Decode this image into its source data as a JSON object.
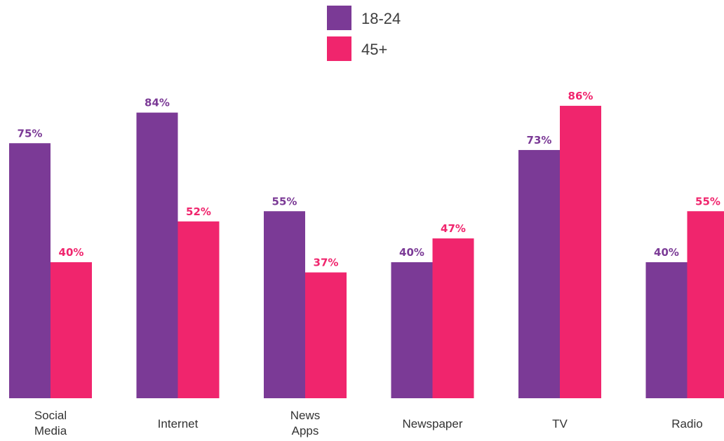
{
  "chart_data": {
    "type": "bar",
    "categories": [
      "Social\nMedia",
      "Internet",
      "News\nApps",
      "Newspaper",
      "TV",
      "Radio"
    ],
    "series": [
      {
        "name": "18-24",
        "color": "#7b3a96",
        "values": [
          75,
          84,
          55,
          40,
          73,
          40
        ]
      },
      {
        "name": "45+",
        "color": "#f0256d",
        "values": [
          40,
          52,
          37,
          47,
          86,
          55
        ]
      }
    ],
    "value_suffix": "%",
    "ylim": [
      0,
      100
    ],
    "grid": false,
    "legend_position": "top-center"
  }
}
